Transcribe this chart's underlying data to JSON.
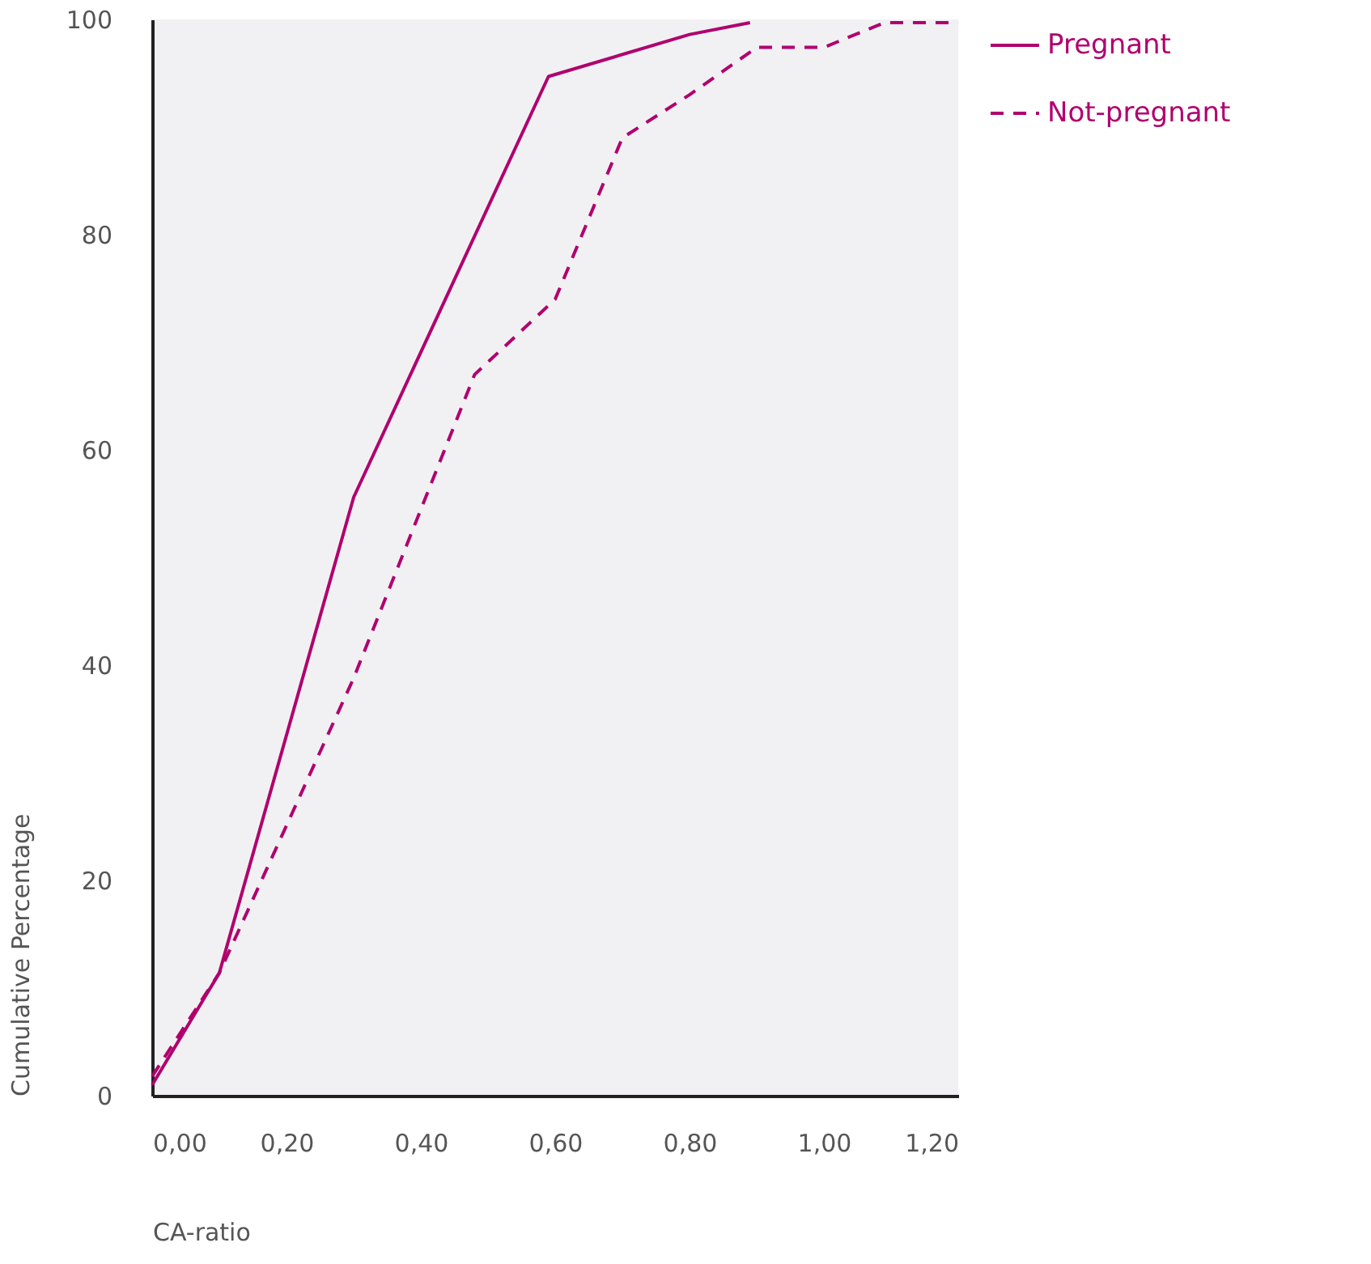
{
  "chart_data": {
    "type": "line",
    "xlabel": "CA-ratio",
    "ylabel": "Cumulative Percentage",
    "xlim": [
      0,
      1.2
    ],
    "ylim": [
      0,
      100
    ],
    "xticks": [
      {
        "value": 0,
        "label": "0,00"
      },
      {
        "value": 0.2,
        "label": "0,20"
      },
      {
        "value": 0.4,
        "label": "0,40"
      },
      {
        "value": 0.6,
        "label": "0,60"
      },
      {
        "value": 0.8,
        "label": "0,80"
      },
      {
        "value": 1.0,
        "label": "1,00"
      },
      {
        "value": 1.2,
        "label": "1,20"
      }
    ],
    "yticks": [
      0,
      20,
      40,
      60,
      80,
      100
    ],
    "grid": false,
    "legend": "top right",
    "marker": "none",
    "series": [
      {
        "name": "Pregnant",
        "color": "#b0006e",
        "line_style": "solid",
        "x": [
          0,
          0.1,
          0.3,
          0.59,
          0.8,
          0.89
        ],
        "values": [
          1,
          11.4,
          55.6,
          94.7,
          98.6,
          99.7
        ]
      },
      {
        "name": "Not-pregnant",
        "color": "#b0006e",
        "line_style": "dashed",
        "x": [
          0,
          0.1,
          0.3,
          0.48,
          0.6,
          0.7,
          0.8,
          0.9,
          1.0,
          1.09,
          1.2
        ],
        "values": [
          1.8,
          11.4,
          38.8,
          67,
          74,
          89,
          93,
          97.4,
          97.4,
          99.7,
          99.7
        ]
      }
    ]
  }
}
